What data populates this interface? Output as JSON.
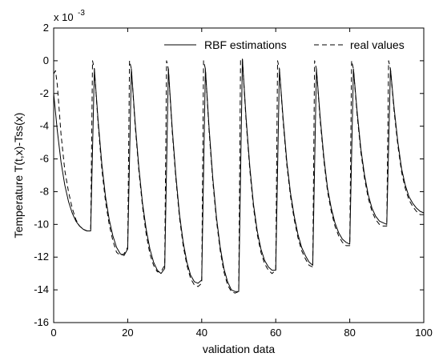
{
  "chart_data": {
    "type": "line",
    "title": "",
    "xlabel": "validation data",
    "ylabel": "Temperature T(t,x)-Tss(x)",
    "y_exponent_label": "x 10",
    "y_exponent_power": "-3",
    "xlim": [
      0,
      100
    ],
    "ylim": [
      -16,
      2
    ],
    "x_ticks": [
      "0",
      "20",
      "40",
      "60",
      "80",
      "100"
    ],
    "y_ticks": [
      "2",
      "0",
      "-2",
      "-4",
      "-6",
      "-8",
      "-10",
      "-12",
      "-14",
      "-16"
    ],
    "grid": false,
    "legend": {
      "placement": "top-right",
      "entries": [
        "RBF estimations",
        "real values"
      ]
    },
    "series": [
      {
        "name": "RBF estimations",
        "style": "solid",
        "color": "#000000",
        "x": [
          0,
          1,
          2,
          3,
          4,
          5,
          6,
          7,
          8,
          9,
          10,
          11,
          12,
          13,
          14,
          15,
          16,
          17,
          18,
          19,
          20,
          21,
          22,
          23,
          24,
          25,
          26,
          27,
          28,
          29,
          30,
          31,
          32,
          33,
          34,
          35,
          36,
          37,
          38,
          39,
          40,
          41,
          42,
          43,
          44,
          45,
          46,
          47,
          48,
          49,
          50,
          51,
          52,
          53,
          54,
          55,
          56,
          57,
          58,
          59,
          60,
          61,
          62,
          63,
          64,
          65,
          66,
          67,
          68,
          69,
          70,
          71,
          72,
          73,
          74,
          75,
          76,
          77,
          78,
          79,
          80,
          81,
          82,
          83,
          84,
          85,
          86,
          87,
          88,
          89,
          90,
          91,
          92,
          93,
          94,
          95,
          96,
          97,
          98,
          99,
          100
        ],
        "values": [
          -2.0,
          -4.3,
          -6.2,
          -7.6,
          -8.6,
          -9.3,
          -9.8,
          -10.1,
          -10.3,
          -10.4,
          -10.4,
          -0.5,
          -3.6,
          -6.3,
          -8.3,
          -9.7,
          -10.7,
          -11.4,
          -11.8,
          -11.9,
          -11.5,
          -0.5,
          -3.7,
          -6.5,
          -8.7,
          -10.3,
          -11.5,
          -12.3,
          -12.8,
          -13.0,
          -12.7,
          -0.5,
          -4.0,
          -7.0,
          -9.4,
          -11.1,
          -12.3,
          -13.1,
          -13.5,
          -13.6,
          -13.4,
          -0.5,
          -4.1,
          -7.2,
          -9.6,
          -11.4,
          -12.7,
          -13.5,
          -14.0,
          -14.1,
          -14.1,
          0.1,
          -3.5,
          -6.5,
          -8.8,
          -10.4,
          -11.5,
          -12.2,
          -12.6,
          -12.8,
          -12.8,
          -0.5,
          -3.5,
          -6.2,
          -8.1,
          -9.5,
          -10.6,
          -11.4,
          -11.9,
          -12.3,
          -12.5,
          -0.5,
          -3.4,
          -5.9,
          -7.8,
          -9.0,
          -9.9,
          -10.5,
          -10.9,
          -11.1,
          -11.2,
          -0.5,
          -3.1,
          -5.4,
          -7.0,
          -8.2,
          -9.0,
          -9.5,
          -9.8,
          -9.9,
          -10.0,
          -0.5,
          -2.9,
          -5.0,
          -6.6,
          -7.6,
          -8.3,
          -8.7,
          -9.0,
          -9.2,
          -9.3
        ]
      },
      {
        "name": "real values",
        "style": "dashed",
        "color": "#000000",
        "x": [
          0,
          0.5,
          1,
          2,
          3,
          4,
          5,
          6,
          7,
          8,
          9,
          10,
          10.5,
          11,
          12,
          13,
          14,
          15,
          16,
          17,
          18,
          19,
          20,
          20.5,
          21,
          22,
          23,
          24,
          25,
          26,
          27,
          28,
          29,
          30,
          30.5,
          31,
          32,
          33,
          34,
          35,
          36,
          37,
          38,
          39,
          40,
          40.5,
          41,
          42,
          43,
          44,
          45,
          46,
          47,
          48,
          49,
          50,
          50.5,
          51,
          52,
          53,
          54,
          55,
          56,
          57,
          58,
          59,
          60,
          60.5,
          61,
          62,
          63,
          64,
          65,
          66,
          67,
          68,
          69,
          70,
          70.5,
          71,
          72,
          73,
          74,
          75,
          76,
          77,
          78,
          79,
          80,
          80.5,
          81,
          82,
          83,
          84,
          85,
          86,
          87,
          88,
          89,
          90,
          90.5,
          91,
          92,
          93,
          94,
          95,
          96,
          97,
          98,
          99,
          100
        ],
        "values": [
          -0.8,
          -0.6,
          -1.5,
          -4.5,
          -6.7,
          -8.0,
          -9.0,
          -9.7,
          -10.1,
          -10.3,
          -10.4,
          -10.4,
          0.0,
          -0.5,
          -3.8,
          -6.6,
          -8.6,
          -10.0,
          -11.0,
          -11.7,
          -11.9,
          -11.8,
          -11.4,
          0.0,
          -0.5,
          -3.9,
          -6.7,
          -8.9,
          -10.6,
          -11.8,
          -12.5,
          -12.9,
          -12.9,
          -12.5,
          0.0,
          -0.5,
          -4.2,
          -7.2,
          -9.6,
          -11.3,
          -12.5,
          -13.3,
          -13.7,
          -13.8,
          -13.6,
          0.0,
          -0.5,
          -4.3,
          -7.4,
          -9.8,
          -11.6,
          -12.9,
          -13.7,
          -14.1,
          -14.2,
          -14.1,
          0.1,
          0.1,
          -3.7,
          -6.7,
          -9.0,
          -10.6,
          -11.7,
          -12.4,
          -12.8,
          -13.0,
          -12.8,
          0.0,
          -0.5,
          -3.7,
          -6.4,
          -8.3,
          -9.7,
          -10.8,
          -11.6,
          -12.1,
          -12.5,
          -12.6,
          0.0,
          -0.5,
          -3.6,
          -6.1,
          -8.0,
          -9.2,
          -10.1,
          -10.7,
          -11.1,
          -11.3,
          -11.3,
          0.0,
          -0.5,
          -3.3,
          -5.6,
          -7.2,
          -8.4,
          -9.2,
          -9.7,
          -10.0,
          -10.1,
          -10.1,
          0.0,
          -0.5,
          -3.1,
          -5.2,
          -6.8,
          -7.8,
          -8.5,
          -8.9,
          -9.2,
          -9.4,
          -9.4
        ]
      }
    ]
  }
}
